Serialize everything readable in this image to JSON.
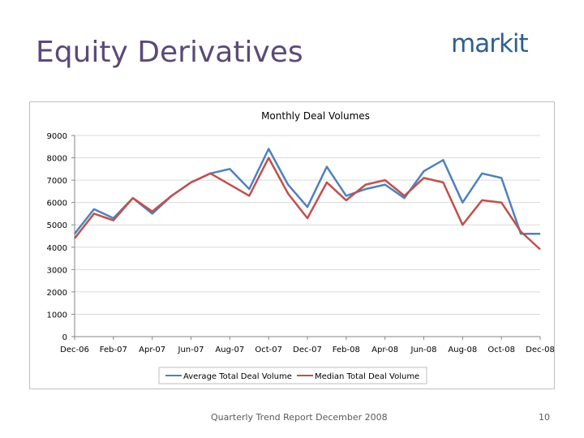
{
  "slide": {
    "title": "Equity Derivatives",
    "logo_text": "markit",
    "footer": "Quarterly Trend Report December 2008",
    "page_number": "10"
  },
  "colors": {
    "title": "#5b4a78",
    "series_average": "#4f81bd",
    "series_median": "#c0504d",
    "grid": "#d9d9d9"
  },
  "chart_data": {
    "type": "line",
    "title": "Monthly Deal Volumes",
    "xlabel": "",
    "ylabel": "",
    "ylim": [
      0,
      9000
    ],
    "yticks": [
      0,
      1000,
      2000,
      3000,
      4000,
      5000,
      6000,
      7000,
      8000,
      9000
    ],
    "x": [
      "Dec-06",
      "Jan-07",
      "Feb-07",
      "Mar-07",
      "Apr-07",
      "May-07",
      "Jun-07",
      "Jul-07",
      "Aug-07",
      "Sep-07",
      "Oct-07",
      "Nov-07",
      "Dec-07",
      "Jan-08",
      "Feb-08",
      "Mar-08",
      "Apr-08",
      "May-08",
      "Jun-08",
      "Jul-08",
      "Aug-08",
      "Sep-08",
      "Oct-08",
      "Nov-08",
      "Dec-08"
    ],
    "tick_labels": [
      "Dec-06",
      "Feb-07",
      "Apr-07",
      "Jun-07",
      "Aug-07",
      "Oct-07",
      "Dec-07",
      "Feb-08",
      "Apr-08",
      "Jun-08",
      "Aug-08",
      "Oct-08",
      "Dec-08"
    ],
    "grid": true,
    "legend": "bottom",
    "series": [
      {
        "name": "Average Total Deal Volume",
        "values": [
          4600,
          5700,
          5300,
          6200,
          5500,
          6300,
          6900,
          7300,
          7500,
          6600,
          8400,
          6800,
          5800,
          7600,
          6300,
          6600,
          6800,
          6200,
          7400,
          7900,
          6000,
          7300,
          7100,
          4600,
          4600
        ]
      },
      {
        "name": "Median Total Deal Volume",
        "values": [
          4400,
          5500,
          5200,
          6200,
          5600,
          6300,
          6900,
          7300,
          6800,
          6300,
          8000,
          6400,
          5300,
          6900,
          6100,
          6800,
          7000,
          6300,
          7100,
          6900,
          5000,
          6100,
          6000,
          4700,
          3900
        ]
      }
    ]
  }
}
